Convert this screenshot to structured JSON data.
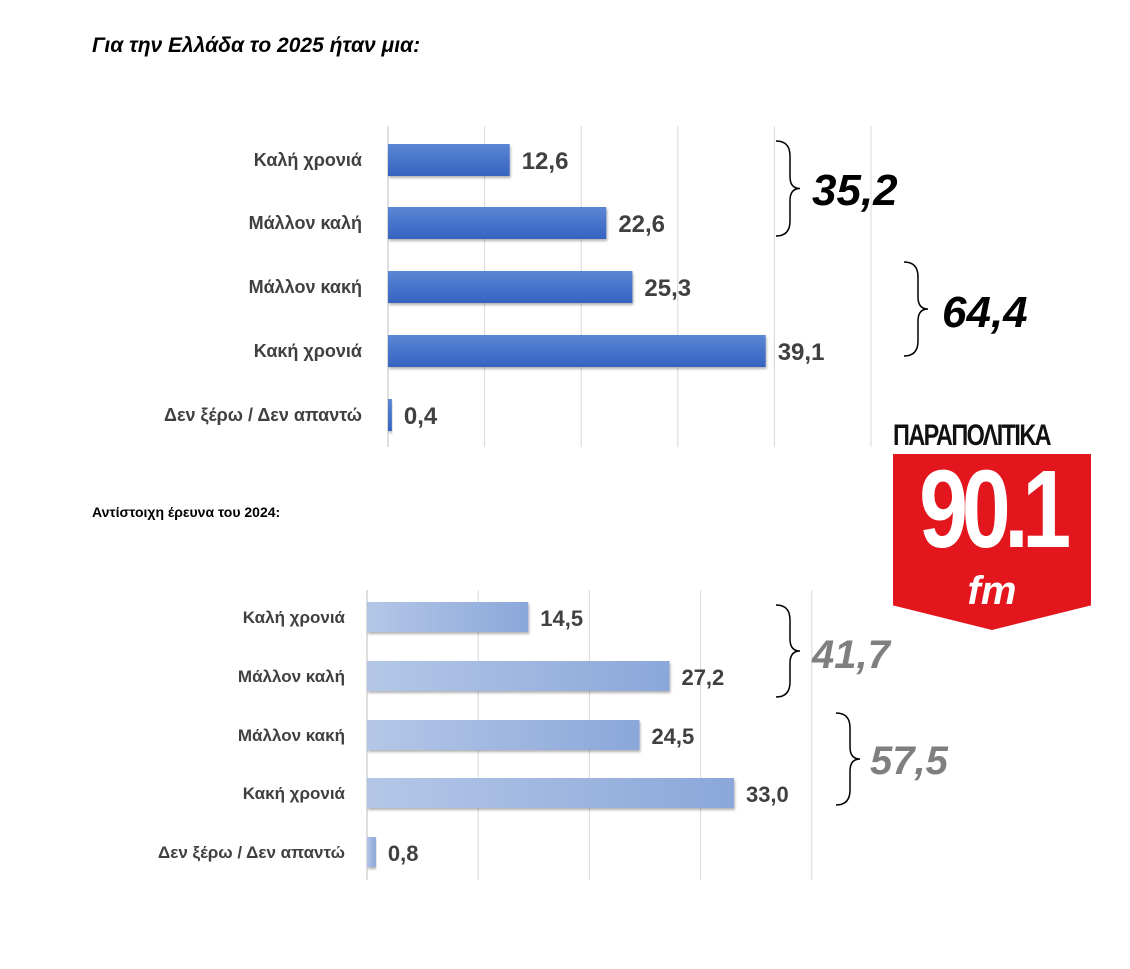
{
  "chart_data": [
    {
      "type": "bar",
      "orientation": "horizontal",
      "title": "Για την Ελλάδα το 2025 ήταν μια:",
      "categories": [
        "Καλή χρονιά",
        "Μάλλον καλή",
        "Μάλλον κακή",
        "Κακή χρονιά",
        "Δεν ξέρω / Δεν απαντώ"
      ],
      "values": [
        12.6,
        22.6,
        25.3,
        39.1,
        0.4
      ],
      "data_labels": [
        "12,6",
        "22,6",
        "25,3",
        "39,1",
        "0,4"
      ],
      "xlim": [
        0,
        50
      ],
      "grid": true,
      "color": "#4472c4",
      "groups": [
        {
          "label": "35,2",
          "categories": [
            "Καλή χρονιά",
            "Μάλλον καλή"
          ]
        },
        {
          "label": "64,4",
          "categories": [
            "Μάλλον κακή",
            "Κακή χρονιά"
          ]
        }
      ]
    },
    {
      "type": "bar",
      "orientation": "horizontal",
      "title": "Αντίστοιχη έρευνα του 2024:",
      "categories": [
        "Καλή χρονιά",
        "Μάλλον καλή",
        "Μάλλον κακή",
        "Κακή χρονιά",
        "Δεν ξέρω / Δεν απαντώ"
      ],
      "values": [
        14.5,
        27.2,
        24.5,
        33.0,
        0.8
      ],
      "data_labels": [
        "14,5",
        "27,2",
        "24,5",
        "33,0",
        "0,8"
      ],
      "xlim": [
        0,
        40
      ],
      "grid": true,
      "color": "#8eaadb",
      "groups": [
        {
          "label": "41,7",
          "categories": [
            "Καλή χρονιά",
            "Μάλλον καλή"
          ]
        },
        {
          "label": "57,5",
          "categories": [
            "Μάλλον κακή",
            "Κακή χρονιά"
          ]
        }
      ]
    }
  ],
  "logo": {
    "top": "ΠΑΡΑΠΟΛΙΤΙΚΑ",
    "number": "90.1",
    "suffix": "fm",
    "color": "#e3161e"
  }
}
